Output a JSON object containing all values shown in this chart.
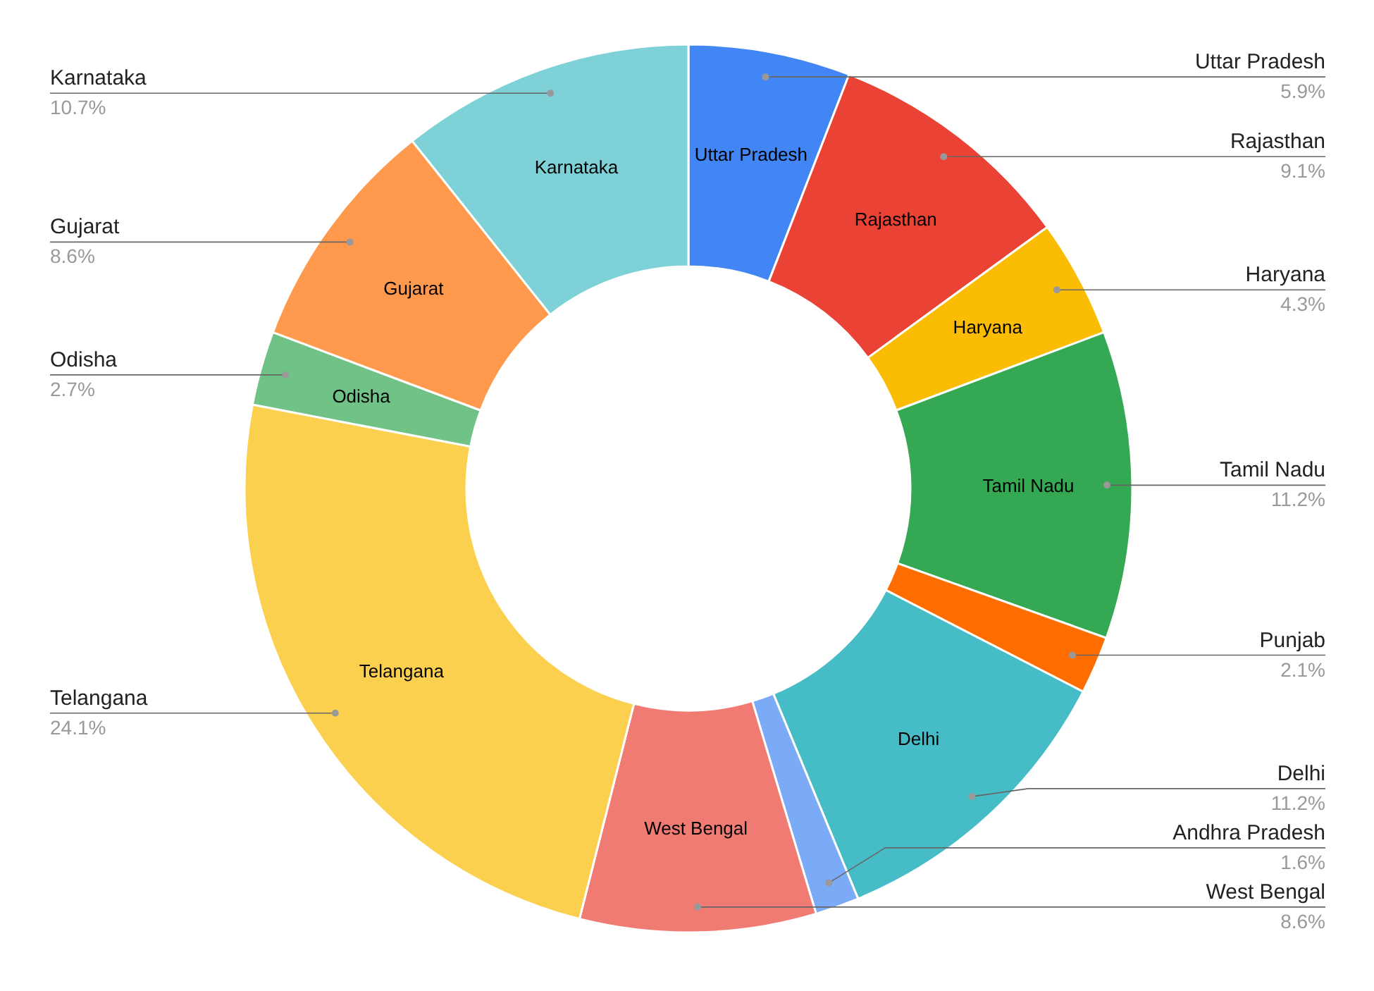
{
  "chart_data": {
    "type": "donut",
    "categories": [
      "Uttar Pradesh",
      "Rajasthan",
      "Haryana",
      "Tamil Nadu",
      "Punjab",
      "Delhi",
      "Andhra Pradesh",
      "West Bengal",
      "Telangana",
      "Odisha",
      "Gujarat",
      "Karnataka"
    ],
    "values": [
      5.9,
      9.1,
      4.3,
      11.2,
      2.1,
      11.2,
      1.6,
      8.6,
      24.1,
      2.7,
      8.6,
      10.7
    ],
    "value_labels": [
      "5.9%",
      "9.1%",
      "4.3%",
      "11.2%",
      "2.1%",
      "11.2%",
      "1.6%",
      "8.6%",
      "24.1%",
      "2.7%",
      "8.6%",
      "10.7%"
    ],
    "colors": [
      "#4285f4",
      "#ea4335",
      "#fbbc04",
      "#34a853",
      "#ff6d01",
      "#46bdc6",
      "#7baaf7",
      "#f07b72",
      "#fcd04f",
      "#71c287",
      "#ff994d",
      "#7ed1d7"
    ]
  }
}
